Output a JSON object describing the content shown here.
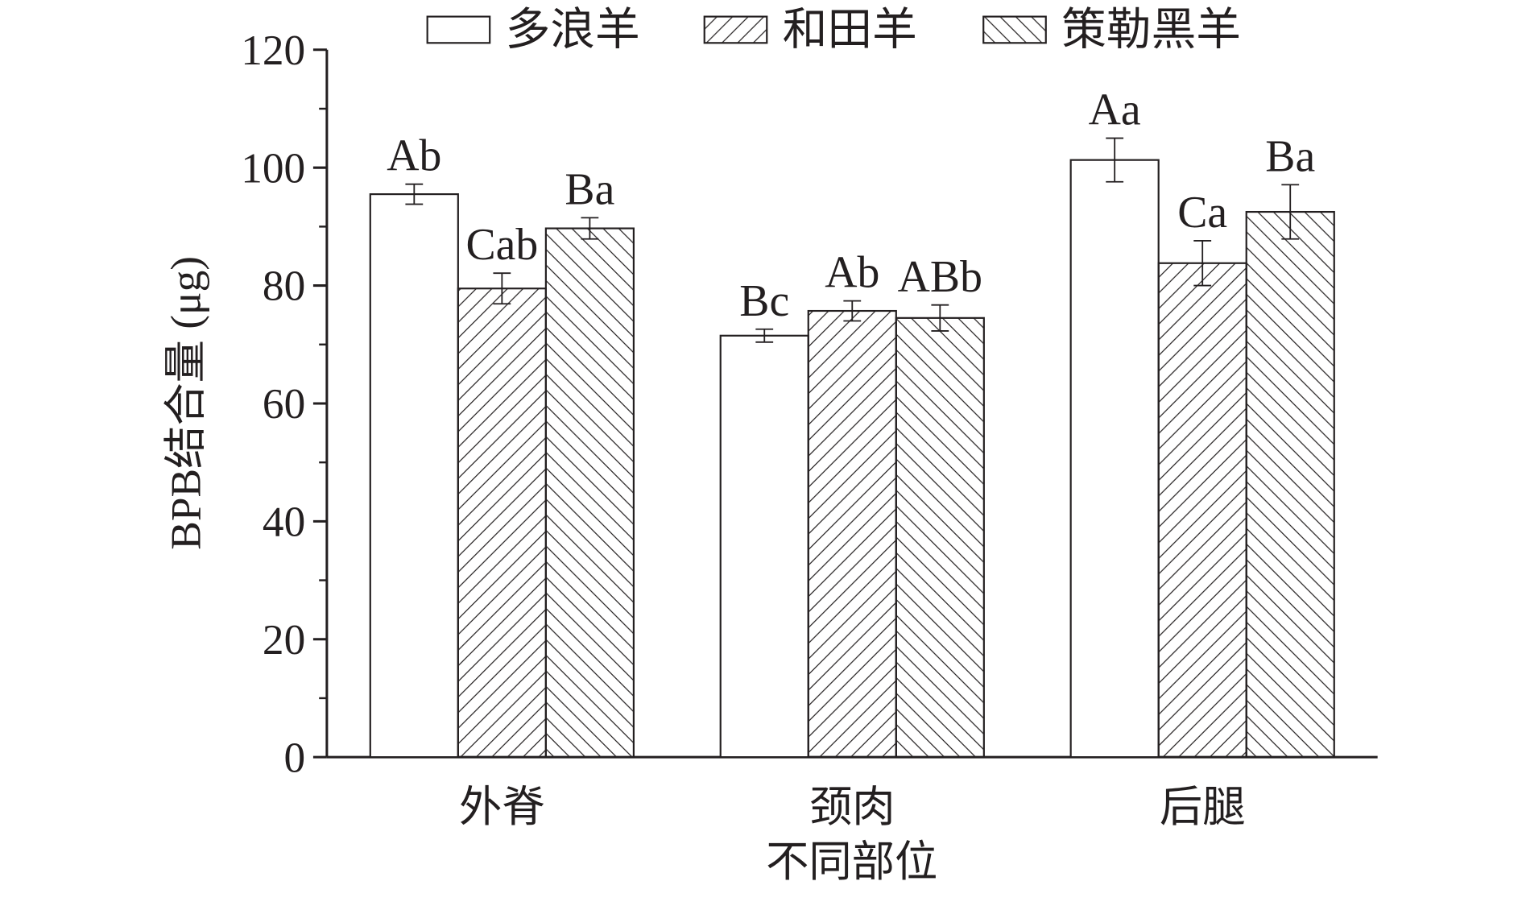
{
  "chart_data": {
    "type": "bar",
    "y_label": "BPB结合量 (μg)",
    "x_label": "不同部位",
    "categories": [
      "外脊",
      "颈肉",
      "后腿"
    ],
    "series": [
      {
        "name": "多浪羊",
        "color": "#ffffff",
        "hatch": "none",
        "values": [
          95.5,
          71.5,
          101.3
        ],
        "errors": [
          1.7,
          1.1,
          3.7
        ],
        "significance_labels": [
          "Ab",
          "Bc",
          "Aa"
        ]
      },
      {
        "name": "和田羊",
        "color": "#ffffff",
        "hatch": "forward",
        "values": [
          79.5,
          75.7,
          83.8
        ],
        "errors": [
          2.6,
          1.7,
          3.8
        ],
        "significance_labels": [
          "Cab",
          "Ab",
          "Ca"
        ]
      },
      {
        "name": "策勒黑羊",
        "color": "#ffffff",
        "hatch": "backward",
        "values": [
          89.7,
          74.5,
          92.5
        ],
        "errors": [
          1.8,
          2.2,
          4.6
        ],
        "significance_labels": [
          "Ba",
          "ABb",
          "Ba"
        ]
      }
    ],
    "ylim": [
      0,
      120
    ],
    "yticks": [
      0,
      20,
      40,
      60,
      80,
      100,
      120
    ],
    "minor_yticks": [
      10,
      30,
      50,
      70,
      90,
      110
    ]
  }
}
